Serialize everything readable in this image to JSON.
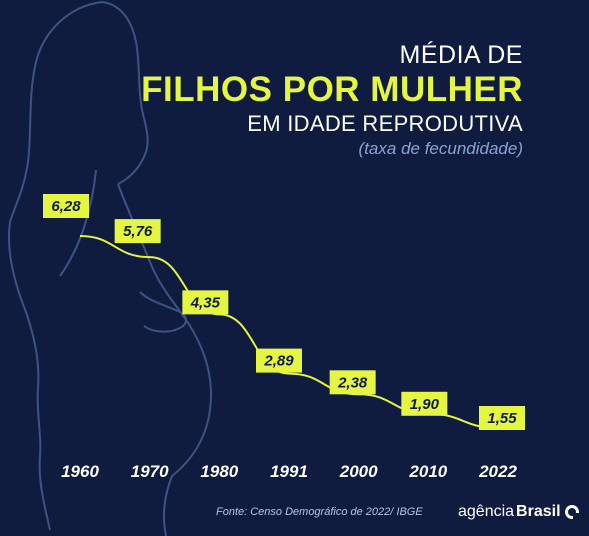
{
  "title": {
    "line1": "MÉDIA DE",
    "line2": "FILHOS POR MULHER",
    "line3": "EM IDADE REPRODUTIVA",
    "line4": "(taxa de fecundidade)"
  },
  "source": "Fonte:  Censo Demográfico de 2022/ IBGE",
  "logo": {
    "prefix": "agência",
    "brand": "Brasil",
    "icon": "agencia-brasil-ring-icon"
  },
  "colors": {
    "background": "#0f1c40",
    "accent": "#e4f542",
    "text": "#ffffff",
    "silhouette": "#3f5282"
  },
  "chart_data": {
    "type": "line",
    "categories": [
      "1960",
      "1970",
      "1980",
      "1991",
      "2000",
      "2010",
      "2022"
    ],
    "values": [
      6.28,
      5.76,
      4.35,
      2.89,
      2.38,
      1.9,
      1.55
    ],
    "data_labels": [
      "6,28",
      "5,76",
      "4,35",
      "2,89",
      "2,38",
      "1,90",
      "1,55"
    ],
    "grid": false,
    "legend": "none"
  }
}
